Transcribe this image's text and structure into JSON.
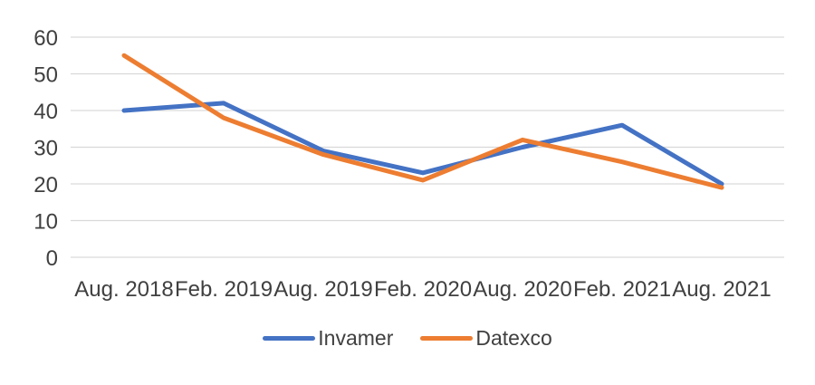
{
  "chart_data": {
    "type": "line",
    "title": "",
    "xlabel": "",
    "ylabel": "",
    "categories": [
      "Aug. 2018",
      "Feb. 2019",
      "Aug. 2019",
      "Feb. 2020",
      "Aug. 2020",
      "Feb. 2021",
      "Aug. 2021"
    ],
    "series": [
      {
        "name": "Invamer",
        "color": "#4472C4",
        "values": [
          40,
          42,
          29,
          23,
          30,
          36,
          20
        ]
      },
      {
        "name": "Datexco",
        "color": "#ED7D31",
        "values": [
          55,
          38,
          28,
          21,
          32,
          26,
          19
        ]
      }
    ],
    "ylim": [
      0,
      60
    ],
    "ytick_step": 10,
    "yticks": [
      0,
      10,
      20,
      30,
      40,
      50,
      60
    ],
    "grid": true,
    "legend_position": "bottom"
  },
  "colors": {
    "gridline": "#D9D9D9",
    "axis_text": "#404040",
    "background": "#FFFFFF"
  }
}
